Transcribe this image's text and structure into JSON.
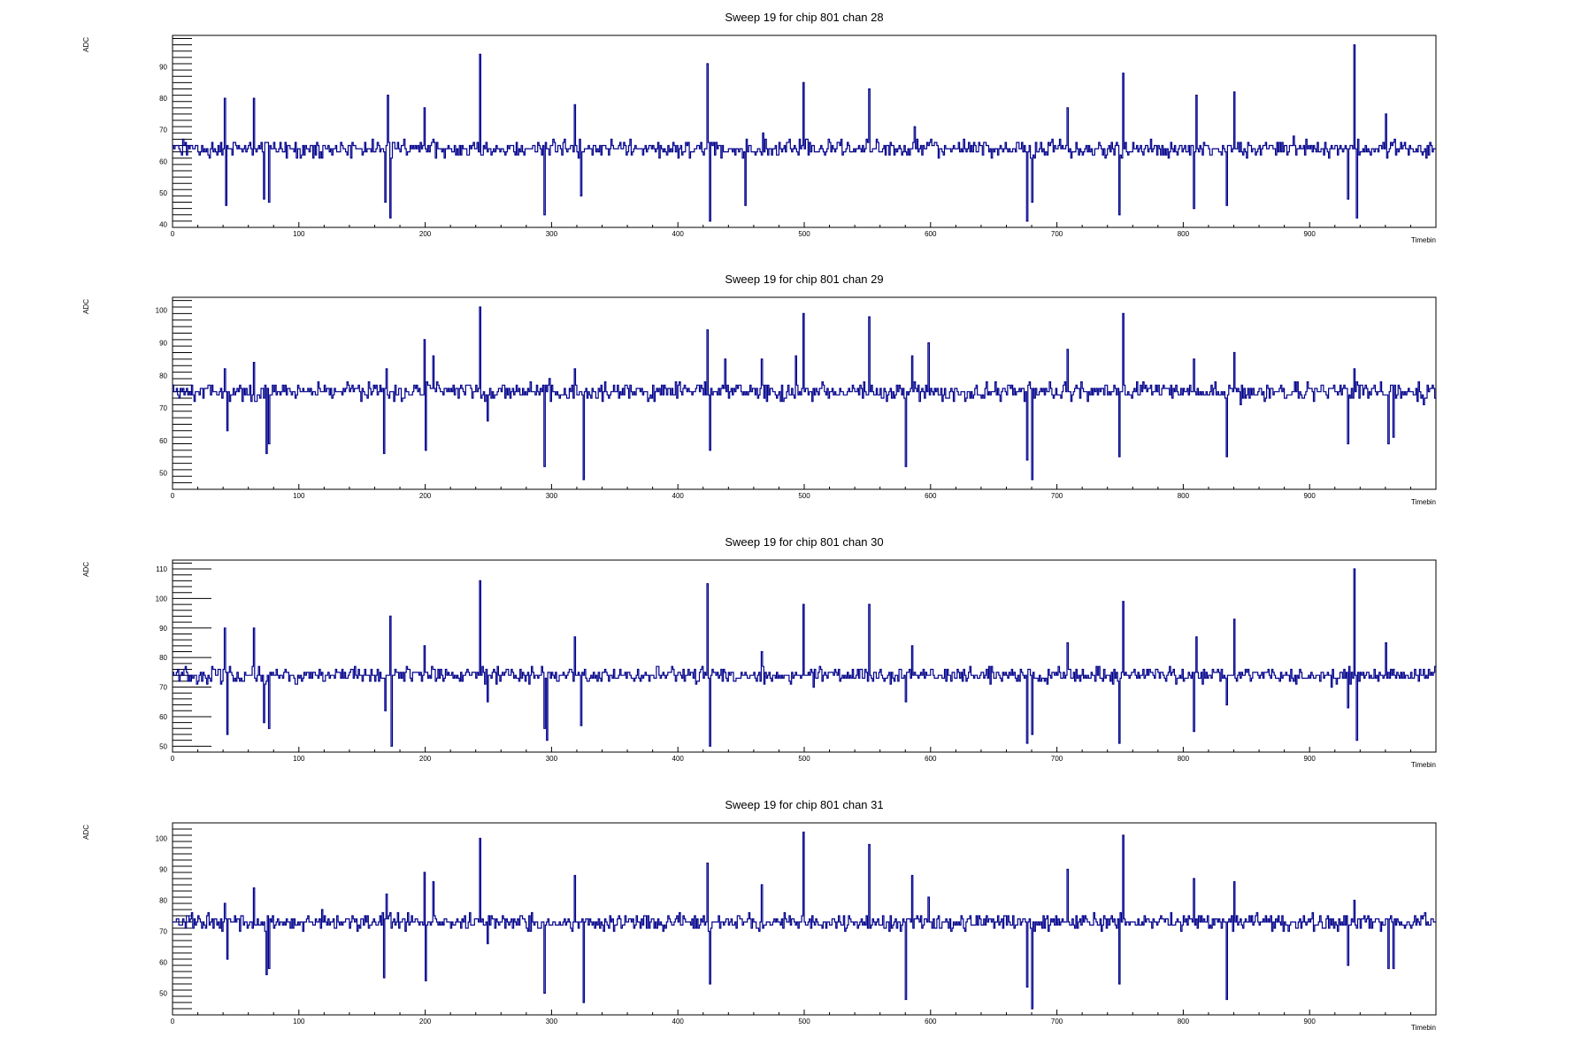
{
  "chart_data": [
    {
      "type": "line",
      "title": "Sweep 19 for chip 801 chan 28",
      "xlabel": "Timebin",
      "ylabel": "ADC",
      "xlim": [
        0,
        1000
      ],
      "ylim": [
        39,
        100
      ],
      "xticks": [
        0,
        100,
        200,
        300,
        400,
        500,
        600,
        700,
        800,
        900
      ],
      "yticks": [
        40,
        50,
        60,
        70,
        80,
        90
      ],
      "baseline": 64,
      "color": "#00008b",
      "spikes": [
        [
          41,
          80
        ],
        [
          42,
          46
        ],
        [
          64,
          80
        ],
        [
          72,
          48
        ],
        [
          76,
          47
        ],
        [
          168,
          47
        ],
        [
          170,
          81
        ],
        [
          172,
          42
        ],
        [
          199,
          77
        ],
        [
          243,
          94
        ],
        [
          249,
          63
        ],
        [
          294,
          43
        ],
        [
          318,
          78
        ],
        [
          323,
          49
        ],
        [
          423,
          91
        ],
        [
          425,
          41
        ],
        [
          453,
          46
        ],
        [
          467,
          69
        ],
        [
          499,
          85
        ],
        [
          551,
          83
        ],
        [
          587,
          71
        ],
        [
          676,
          41
        ],
        [
          680,
          47
        ],
        [
          708,
          77
        ],
        [
          749,
          43
        ],
        [
          752,
          88
        ],
        [
          808,
          45
        ],
        [
          810,
          81
        ],
        [
          834,
          46
        ],
        [
          840,
          82
        ],
        [
          930,
          48
        ],
        [
          935,
          97
        ],
        [
          937,
          42
        ],
        [
          960,
          75
        ]
      ]
    },
    {
      "type": "line",
      "title": "Sweep 19 for chip 801 chan 29",
      "xlabel": "Timebin",
      "ylabel": "ADC",
      "xlim": [
        0,
        1000
      ],
      "ylim": [
        45,
        104
      ],
      "xticks": [
        0,
        100,
        200,
        300,
        400,
        500,
        600,
        700,
        800,
        900
      ],
      "yticks": [
        50,
        60,
        70,
        80,
        90,
        100
      ],
      "baseline": 75,
      "color": "#00008b",
      "spikes": [
        [
          41,
          82
        ],
        [
          43,
          63
        ],
        [
          64,
          84
        ],
        [
          74,
          56
        ],
        [
          76,
          59
        ],
        [
          167,
          56
        ],
        [
          169,
          82
        ],
        [
          199,
          91
        ],
        [
          200,
          57
        ],
        [
          206,
          86
        ],
        [
          243,
          101
        ],
        [
          249,
          66
        ],
        [
          294,
          52
        ],
        [
          318,
          82
        ],
        [
          325,
          48
        ],
        [
          423,
          94
        ],
        [
          425,
          57
        ],
        [
          437,
          85
        ],
        [
          466,
          85
        ],
        [
          493,
          86
        ],
        [
          499,
          99
        ],
        [
          551,
          98
        ],
        [
          580,
          52
        ],
        [
          585,
          86
        ],
        [
          598,
          90
        ],
        [
          676,
          54
        ],
        [
          680,
          48
        ],
        [
          708,
          88
        ],
        [
          749,
          55
        ],
        [
          752,
          99
        ],
        [
          808,
          85
        ],
        [
          834,
          55
        ],
        [
          840,
          87
        ],
        [
          930,
          59
        ],
        [
          935,
          82
        ],
        [
          962,
          59
        ],
        [
          966,
          61
        ]
      ]
    },
    {
      "type": "line",
      "title": "Sweep 19 for chip 801 chan 30",
      "xlabel": "Timebin",
      "ylabel": "ADC",
      "xlim": [
        0,
        1000
      ],
      "ylim": [
        48,
        113
      ],
      "xticks": [
        0,
        100,
        200,
        300,
        400,
        500,
        600,
        700,
        800,
        900
      ],
      "yticks": [
        50,
        60,
        70,
        80,
        90,
        100,
        110
      ],
      "baseline": 74,
      "color": "#00008b",
      "spikes": [
        [
          41,
          90
        ],
        [
          43,
          54
        ],
        [
          64,
          90
        ],
        [
          72,
          58
        ],
        [
          76,
          56
        ],
        [
          168,
          62
        ],
        [
          172,
          94
        ],
        [
          173,
          50
        ],
        [
          199,
          84
        ],
        [
          243,
          106
        ],
        [
          249,
          65
        ],
        [
          294,
          56
        ],
        [
          296,
          52
        ],
        [
          318,
          87
        ],
        [
          323,
          57
        ],
        [
          423,
          105
        ],
        [
          425,
          50
        ],
        [
          466,
          82
        ],
        [
          499,
          98
        ],
        [
          551,
          98
        ],
        [
          580,
          65
        ],
        [
          585,
          84
        ],
        [
          676,
          51
        ],
        [
          680,
          54
        ],
        [
          708,
          85
        ],
        [
          749,
          51
        ],
        [
          752,
          99
        ],
        [
          808,
          55
        ],
        [
          810,
          87
        ],
        [
          834,
          64
        ],
        [
          840,
          93
        ],
        [
          930,
          63
        ],
        [
          935,
          110
        ],
        [
          937,
          52
        ],
        [
          960,
          85
        ]
      ]
    },
    {
      "type": "line",
      "title": "Sweep 19 for chip 801 chan 31",
      "xlabel": "Timebin",
      "ylabel": "ADC",
      "xlim": [
        0,
        1000
      ],
      "ylim": [
        43,
        105
      ],
      "xticks": [
        0,
        100,
        200,
        300,
        400,
        500,
        600,
        700,
        800,
        900
      ],
      "yticks": [
        50,
        60,
        70,
        80,
        90,
        100
      ],
      "baseline": 73,
      "color": "#00008b",
      "spikes": [
        [
          41,
          79
        ],
        [
          43,
          61
        ],
        [
          64,
          84
        ],
        [
          74,
          56
        ],
        [
          76,
          58
        ],
        [
          167,
          55
        ],
        [
          169,
          82
        ],
        [
          199,
          89
        ],
        [
          200,
          54
        ],
        [
          206,
          86
        ],
        [
          243,
          100
        ],
        [
          249,
          66
        ],
        [
          294,
          50
        ],
        [
          318,
          88
        ],
        [
          325,
          47
        ],
        [
          423,
          92
        ],
        [
          425,
          53
        ],
        [
          466,
          85
        ],
        [
          499,
          102
        ],
        [
          551,
          98
        ],
        [
          580,
          48
        ],
        [
          585,
          88
        ],
        [
          598,
          81
        ],
        [
          676,
          52
        ],
        [
          680,
          45
        ],
        [
          708,
          90
        ],
        [
          749,
          53
        ],
        [
          752,
          101
        ],
        [
          808,
          87
        ],
        [
          834,
          48
        ],
        [
          840,
          86
        ],
        [
          930,
          59
        ],
        [
          935,
          80
        ],
        [
          962,
          58
        ],
        [
          966,
          58
        ]
      ]
    }
  ]
}
